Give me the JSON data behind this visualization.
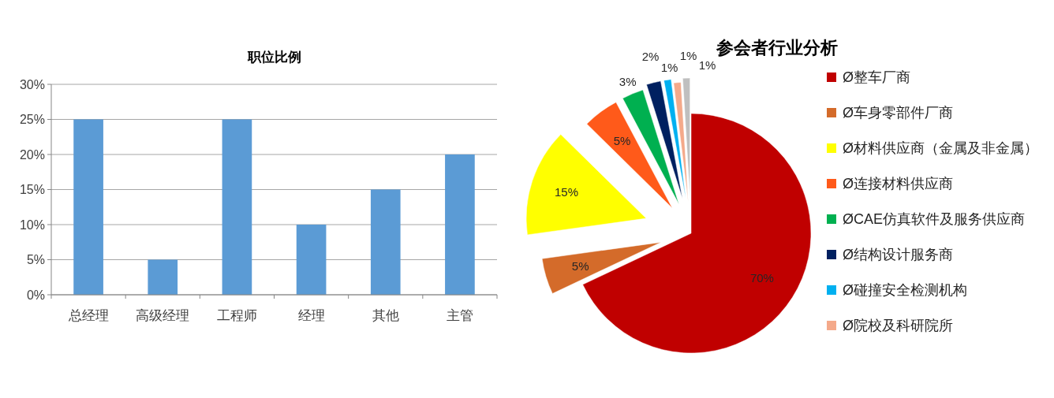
{
  "chart_data": [
    {
      "type": "bar",
      "title": "职位比例",
      "categories": [
        "总经理",
        "高级经理",
        "工程师",
        "经理",
        "其他",
        "主管"
      ],
      "values": [
        25,
        5,
        25,
        10,
        15,
        20
      ],
      "color": "#5b9bd5",
      "ylim": [
        0,
        30
      ],
      "yticks": [
        {
          "value": 0,
          "label": "0%"
        },
        {
          "value": 5,
          "label": "5%"
        },
        {
          "value": 10,
          "label": "10%"
        },
        {
          "value": 15,
          "label": "15%"
        },
        {
          "value": 20,
          "label": "20%"
        },
        {
          "value": 25,
          "label": "25%"
        },
        {
          "value": 30,
          "label": "30%"
        }
      ],
      "grid": "y"
    },
    {
      "type": "pie",
      "title": "参会者行业分析",
      "categories": [
        "Ø整车厂商",
        "Ø车身零部件厂商",
        "Ø材料供应商（金属及非金属）",
        "Ø连接材料供应商",
        "ØCAE仿真软件及服务供应商",
        "Ø结构设计服务商",
        "Ø碰撞安全检测机构",
        "Ø院校及科研院所",
        null
      ],
      "values": [
        70,
        5,
        15,
        5,
        3,
        2,
        1,
        1,
        1
      ],
      "colors": [
        "#c00000",
        "#d46b2a",
        "#ffff00",
        "#ff5a1a",
        "#00b050",
        "#002060",
        "#00b0f0",
        "#f4a98a",
        "#bfbfbf"
      ],
      "value_labels": [
        "70%",
        "5%",
        "15%",
        "5%",
        "3%",
        "2%",
        "1%",
        "1%",
        "1%"
      ],
      "legend": "right"
    }
  ]
}
